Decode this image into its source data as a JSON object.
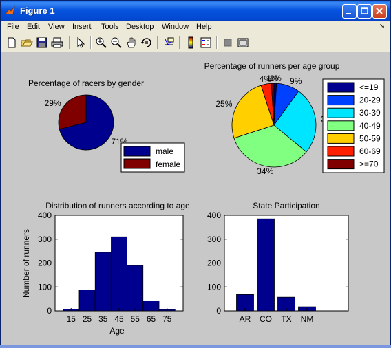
{
  "window": {
    "title": "Figure 1"
  },
  "menu": [
    "File",
    "Edit",
    "View",
    "Insert",
    "Tools",
    "Desktop",
    "Window",
    "Help"
  ],
  "toolbar_icons": [
    "new-file-icon",
    "open-folder-icon",
    "save-icon",
    "print-icon",
    "pointer-icon",
    "zoom-in-icon",
    "zoom-out-icon",
    "pan-hand-icon",
    "rotate-3d-icon",
    "data-cursor-icon",
    "colorbar-icon",
    "legend-icon",
    "hide-plot-tools-icon",
    "show-plot-tools-icon"
  ],
  "colors": {
    "navy": "#000080",
    "maroon": "#800000"
  },
  "chart_data": [
    {
      "type": "pie",
      "title": "Percentage of racers by gender",
      "labels": [
        "male",
        "female"
      ],
      "values": [
        71,
        29
      ],
      "slice_labels": [
        "71%",
        "29%"
      ],
      "colors": [
        "#00008f",
        "#800000"
      ],
      "legend": "bottom-right"
    },
    {
      "type": "pie",
      "title": "Percentage of runners per age group",
      "labels": [
        "<=19",
        "20-29",
        "30-39",
        "40-49",
        "50-59",
        "60-69",
        ">=70"
      ],
      "values": [
        1,
        9,
        26,
        34,
        25,
        4,
        1
      ],
      "slice_labels": [
        "1%",
        "9%",
        "26%",
        "34%",
        "25%",
        "4%",
        "1%"
      ],
      "colors": [
        "#00008f",
        "#0040ff",
        "#00e5ff",
        "#80ff80",
        "#ffcf00",
        "#ff2000",
        "#800000"
      ],
      "legend": "right"
    },
    {
      "type": "bar",
      "title": "Distribution of runners according to age",
      "xlabel": "Age",
      "ylabel": "Number of runners",
      "categories": [
        "15",
        "25",
        "35",
        "45",
        "55",
        "65",
        "75"
      ],
      "values": [
        7,
        88,
        245,
        310,
        190,
        42,
        6
      ],
      "ylim": [
        0,
        400
      ],
      "yticks": [
        "0",
        "100",
        "200",
        "300",
        "400"
      ]
    },
    {
      "type": "bar",
      "title": "State Participation",
      "xlabel": "",
      "ylabel": "",
      "categories": [
        "AR",
        "CO",
        "TX",
        "NM"
      ],
      "values": [
        68,
        385,
        57,
        17
      ],
      "ylim": [
        0,
        400
      ],
      "yticks": [
        "0",
        "100",
        "200",
        "300",
        "400"
      ]
    }
  ]
}
